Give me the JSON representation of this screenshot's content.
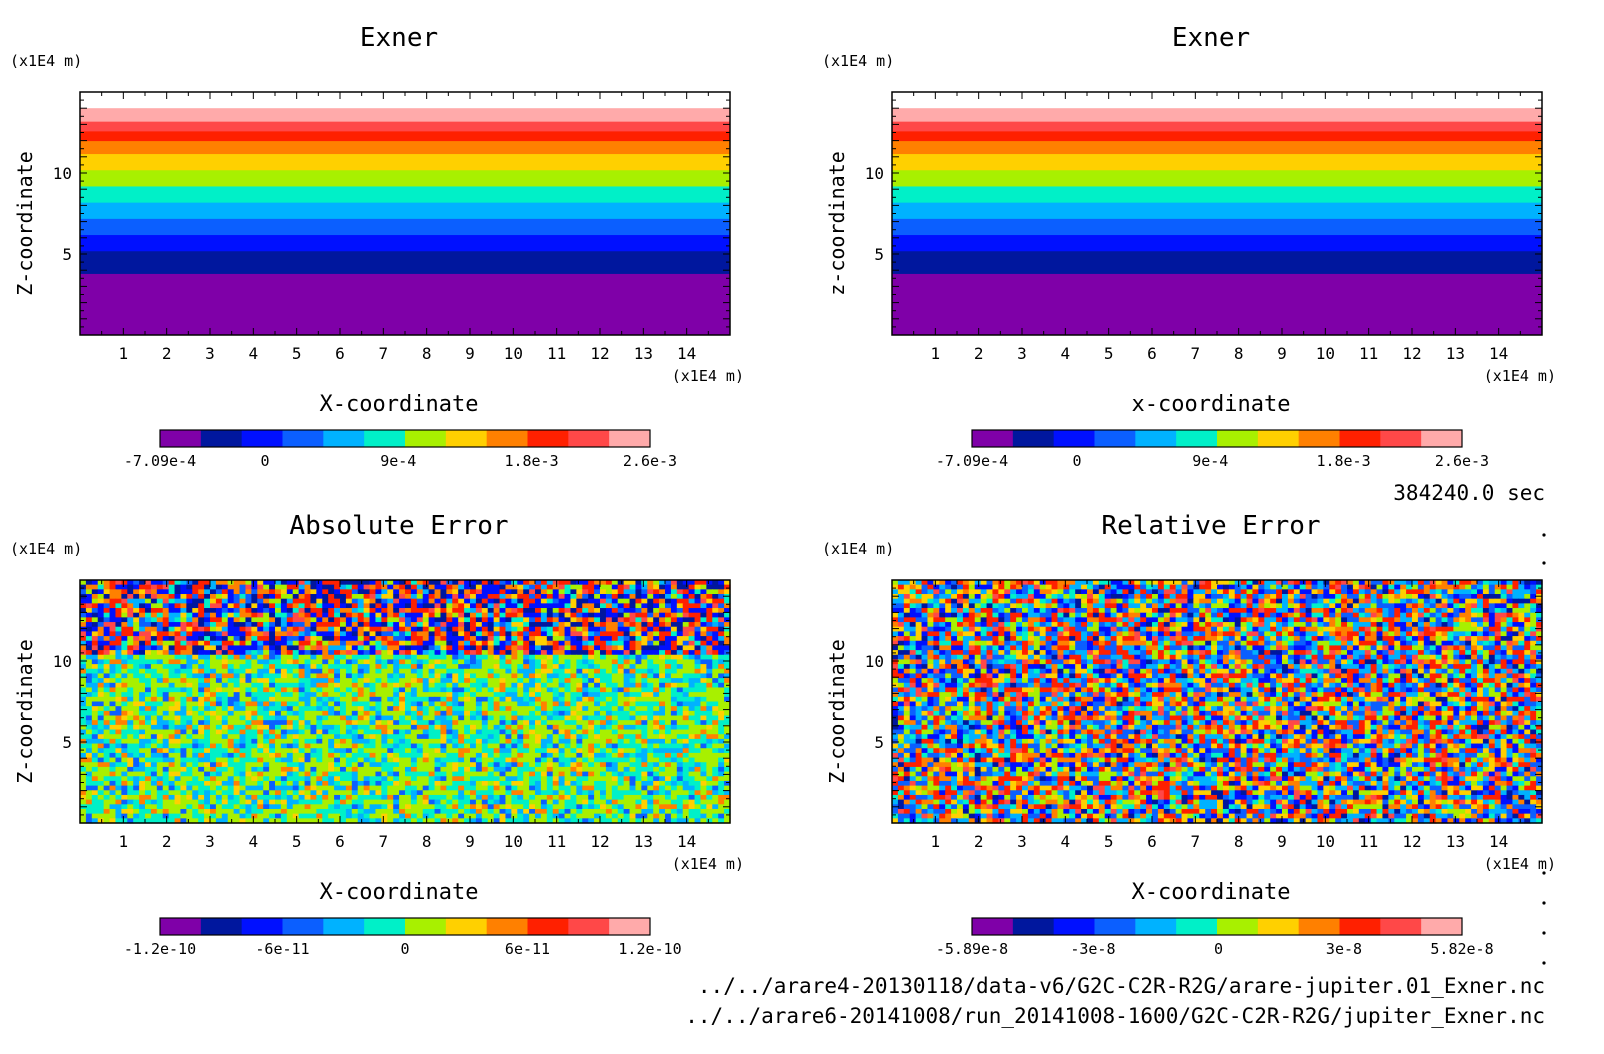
{
  "time_label": "384240.0 sec",
  "files": [
    "../../arare4-20130118/data-v6/G2C-C2R-R2G/arare-jupiter.01_Exner.nc",
    "../../arare6-20141008/run_20141008-1600/G2C-C2R-R2G/jupiter_Exner.nc"
  ],
  "palette": [
    "#7f00a8",
    "#00179e",
    "#0010ff",
    "#0b5fff",
    "#00b2ff",
    "#00f0c8",
    "#a8f000",
    "#ffd000",
    "#ff8000",
    "#ff2000",
    "#ff4848",
    "#ffaaaa"
  ],
  "chart_data": [
    {
      "type": "heatmap",
      "title": "Exner",
      "xlabel": "X-coordinate",
      "ylabel": "Z-coordinate",
      "x_unit": "(x1E4 m)",
      "y_unit": "(x1E4 m)",
      "xlim": [
        0,
        15
      ],
      "ylim": [
        0,
        15
      ],
      "x_ticks": [
        1,
        2,
        3,
        4,
        5,
        6,
        7,
        8,
        9,
        10,
        11,
        12,
        13,
        14
      ],
      "y_ticks": [
        5,
        10
      ],
      "field": "layered",
      "layer_bounds": [
        0,
        3.8,
        5.2,
        6.2,
        7.2,
        8.2,
        9.2,
        10.2,
        11.2,
        12.0,
        12.6,
        13.2,
        14.0
      ],
      "colorbar": {
        "min": -0.000709,
        "max": 0.0026,
        "tick_values": [
          -0.000709,
          0,
          0.0009,
          0.0018,
          0.0026
        ],
        "tick_labels": [
          "-7.09e-4",
          "0",
          "9e-4",
          "1.8e-3",
          "2.6e-3"
        ]
      }
    },
    {
      "type": "heatmap",
      "title": "Exner",
      "xlabel": "x-coordinate",
      "ylabel": "z-coordinate",
      "x_unit": "(x1E4 m)",
      "y_unit": "(x1E4 m)",
      "xlim": [
        0,
        15
      ],
      "ylim": [
        0,
        15
      ],
      "x_ticks": [
        1,
        2,
        3,
        4,
        5,
        6,
        7,
        8,
        9,
        10,
        11,
        12,
        13,
        14
      ],
      "y_ticks": [
        5,
        10
      ],
      "field": "layered",
      "layer_bounds": [
        0,
        3.8,
        5.2,
        6.2,
        7.2,
        8.2,
        9.2,
        10.2,
        11.2,
        12.0,
        12.6,
        13.2,
        14.0
      ],
      "colorbar": {
        "min": -0.000709,
        "max": 0.0026,
        "tick_values": [
          -0.000709,
          0,
          0.0009,
          0.0018,
          0.0026
        ],
        "tick_labels": [
          "-7.09e-4",
          "0",
          "9e-4",
          "1.8e-3",
          "2.6e-3"
        ]
      }
    },
    {
      "type": "heatmap",
      "title": "Absolute Error",
      "xlabel": "X-coordinate",
      "ylabel": "Z-coordinate",
      "x_unit": "(x1E4 m)",
      "y_unit": "(x1E4 m)",
      "xlim": [
        0,
        15
      ],
      "ylim": [
        0,
        15
      ],
      "x_ticks": [
        1,
        2,
        3,
        4,
        5,
        6,
        7,
        8,
        9,
        10,
        11,
        12,
        13,
        14
      ],
      "y_ticks": [
        5,
        10
      ],
      "field": "noise_abs",
      "colorbar": {
        "min": -1.2e-10,
        "max": 1.2e-10,
        "tick_values": [
          -1.2e-10,
          -6e-11,
          0,
          6e-11,
          1.2e-10
        ],
        "tick_labels": [
          "-1.2e-10",
          "-6e-11",
          "0",
          "6e-11",
          "1.2e-10"
        ]
      }
    },
    {
      "type": "heatmap",
      "title": "Relative Error",
      "xlabel": "X-coordinate",
      "ylabel": "Z-coordinate",
      "x_unit": "(x1E4 m)",
      "y_unit": "(x1E4 m)",
      "xlim": [
        0,
        15
      ],
      "ylim": [
        0,
        15
      ],
      "x_ticks": [
        1,
        2,
        3,
        4,
        5,
        6,
        7,
        8,
        9,
        10,
        11,
        12,
        13,
        14
      ],
      "y_ticks": [
        5,
        10
      ],
      "field": "noise_rel",
      "colorbar": {
        "min": -5.89e-08,
        "max": 5.82e-08,
        "tick_values": [
          -5.89e-08,
          -3e-08,
          0,
          3e-08,
          5.82e-08
        ],
        "tick_labels": [
          "-5.89e-8",
          "-3e-8",
          "0",
          "3e-8",
          "5.82e-8"
        ]
      }
    }
  ]
}
